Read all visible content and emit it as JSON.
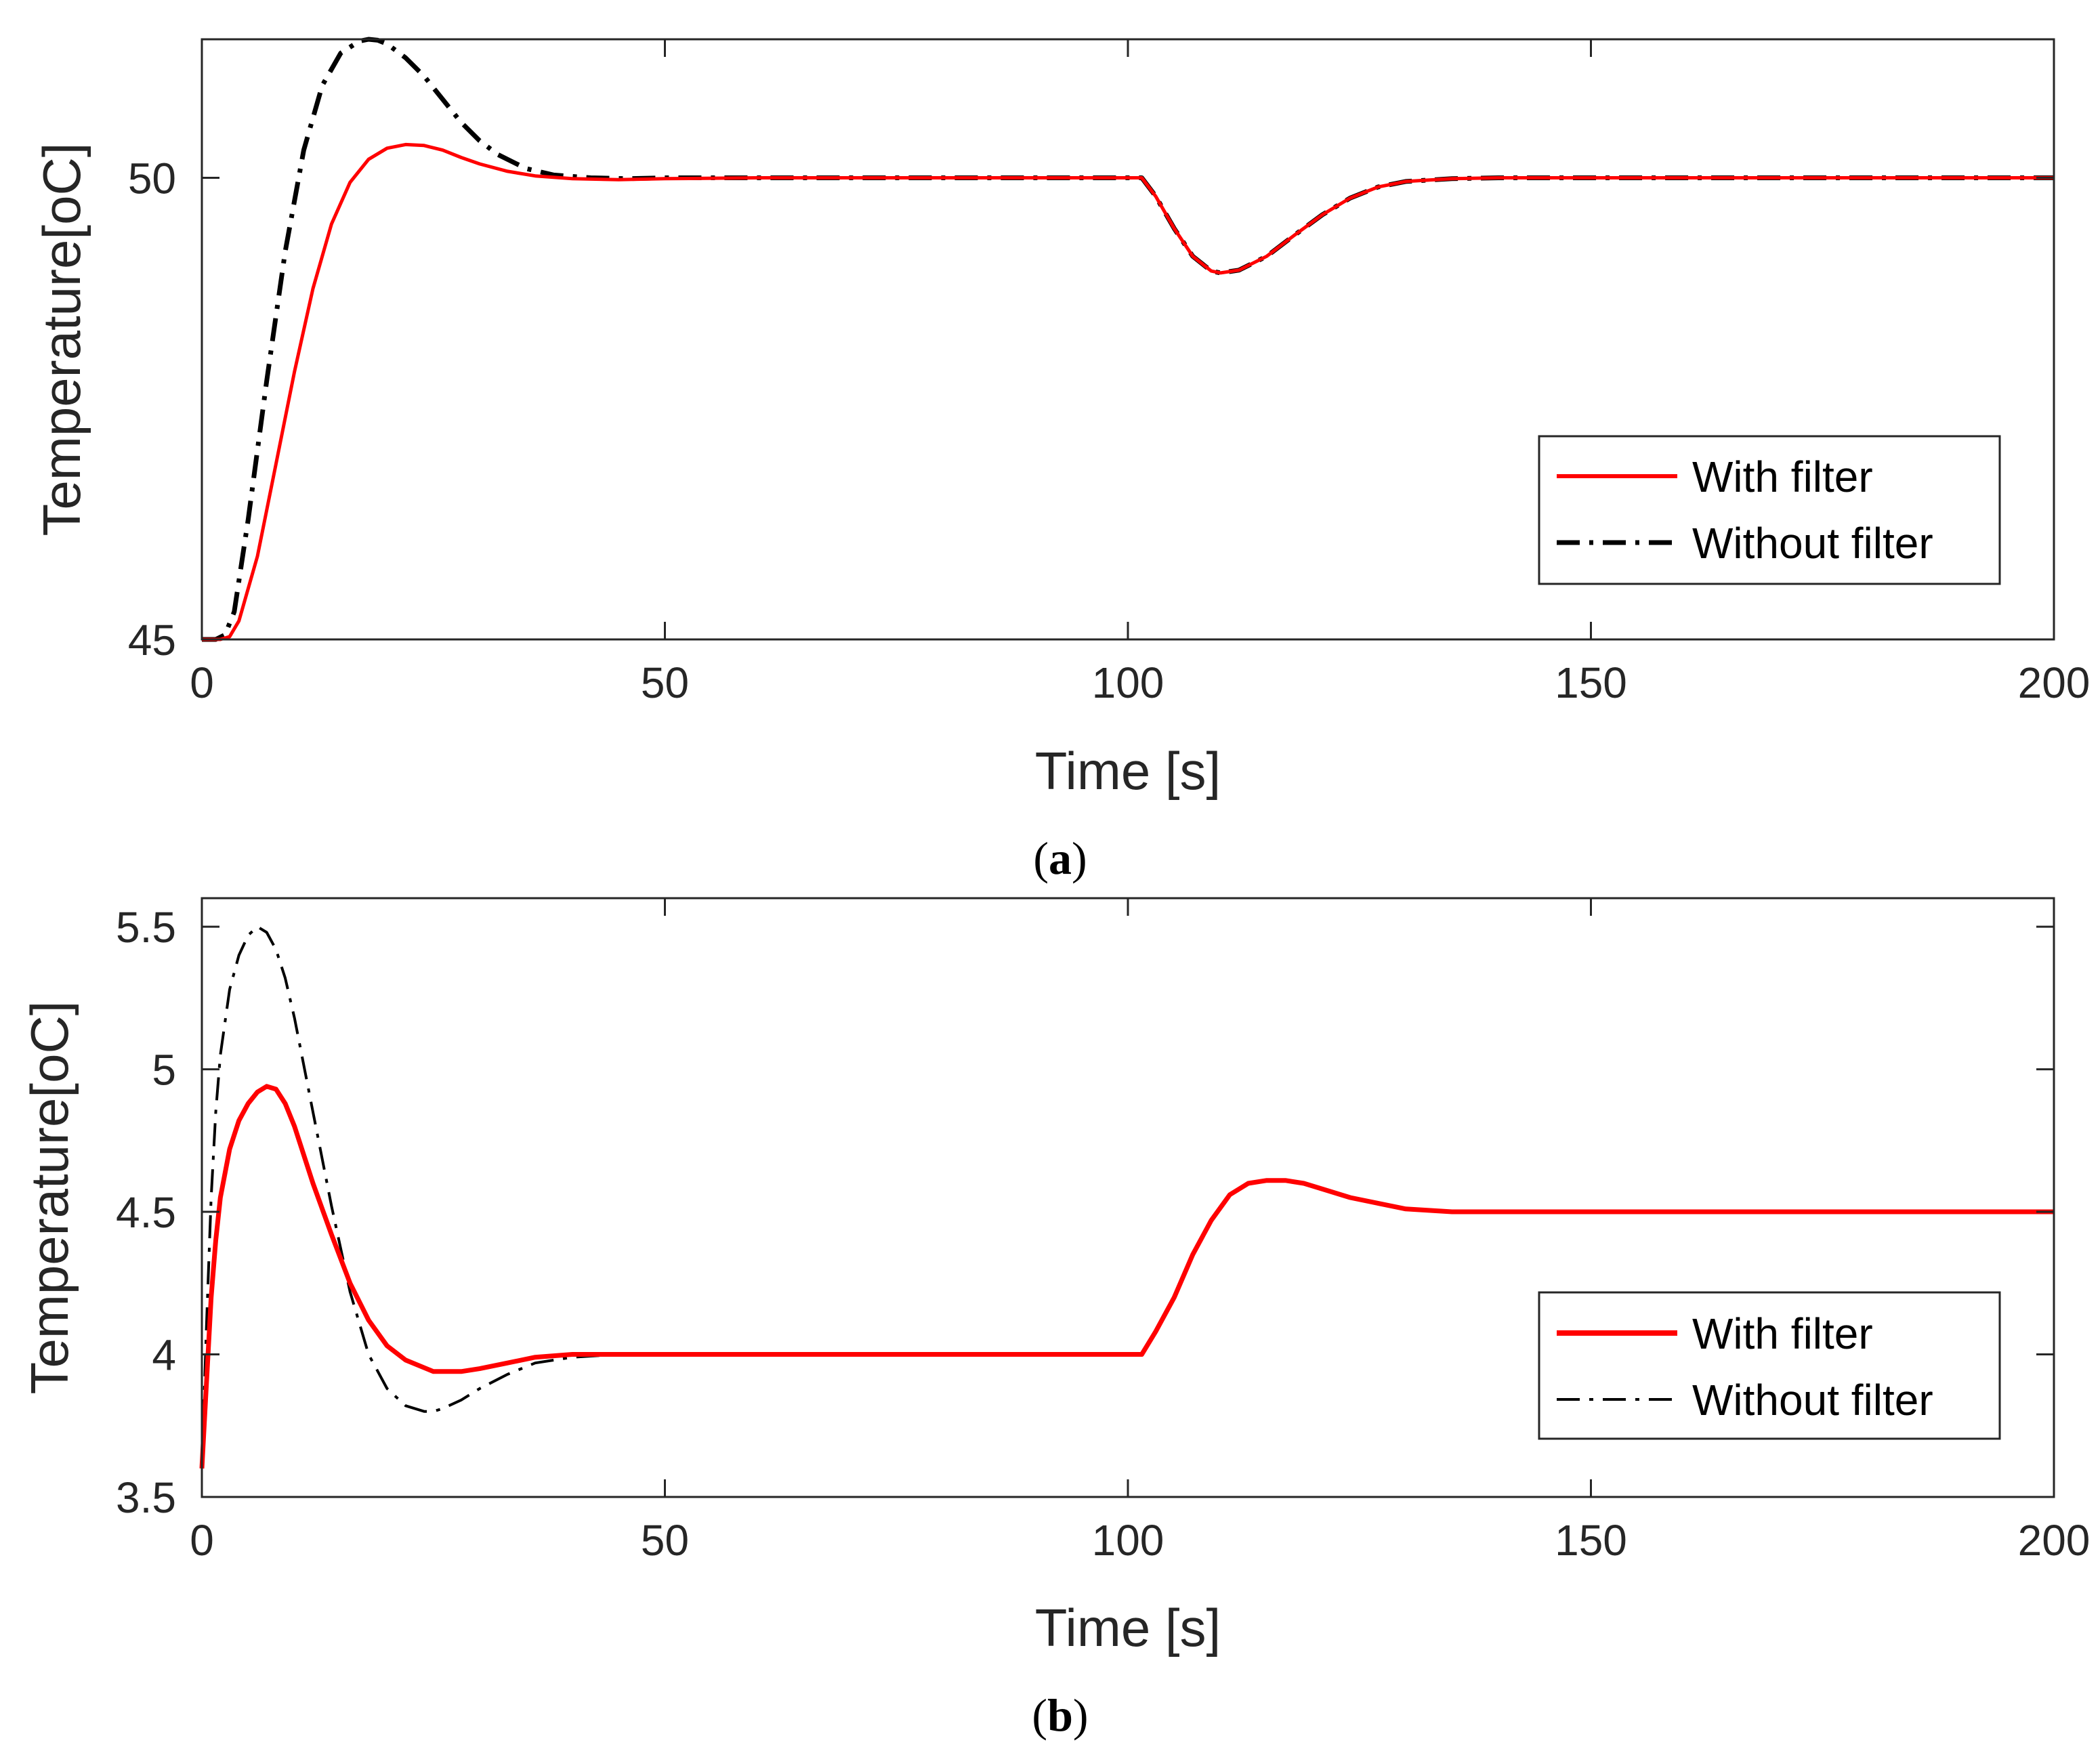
{
  "colors": {
    "with_filter": "#ff0000",
    "without_filter": "#000000",
    "axes": "#262626"
  },
  "chart_data": [
    {
      "type": "line",
      "caption_letter": "a",
      "xlabel": "Time [s]",
      "ylabel": "Temperature[oC]",
      "xlim": [
        0,
        200
      ],
      "ylim": [
        45,
        51.5
      ],
      "xticks": [
        "0",
        "50",
        "100",
        "150",
        "200"
      ],
      "yticks": [
        "45",
        "50"
      ],
      "grid": false,
      "legend_position": "lower-right",
      "series": [
        {
          "name": "With filter",
          "style": "solid",
          "x": [
            0,
            2,
            3,
            4,
            6,
            8,
            10,
            12,
            14,
            16,
            18,
            20,
            22,
            24,
            26,
            28,
            30,
            33,
            36,
            40,
            45,
            50,
            60,
            80,
            100,
            101.5,
            103,
            105,
            107,
            109,
            110,
            112,
            115,
            118,
            121,
            124,
            127,
            130,
            135,
            140,
            150,
            170,
            200
          ],
          "y": [
            45,
            45,
            45.03,
            45.2,
            45.9,
            46.9,
            47.9,
            48.8,
            49.5,
            49.95,
            50.2,
            50.32,
            50.36,
            50.35,
            50.3,
            50.22,
            50.15,
            50.07,
            50.02,
            49.99,
            49.98,
            49.99,
            50,
            50,
            50,
            50,
            49.8,
            49.45,
            49.15,
            48.99,
            48.97,
            49.0,
            49.15,
            49.38,
            49.6,
            49.78,
            49.9,
            49.96,
            49.99,
            50,
            50,
            50,
            50
          ]
        },
        {
          "name": "Without filter",
          "style": "dashdot",
          "x": [
            0,
            1.5,
            2.5,
            3.5,
            5,
            7,
            9,
            11,
            13,
            15,
            17,
            18,
            19,
            20,
            22,
            24,
            26,
            28,
            30,
            32,
            35,
            38,
            42,
            46,
            50,
            60,
            80,
            100,
            101.5,
            103,
            105,
            107,
            109,
            110,
            112,
            115,
            118,
            121,
            124,
            127,
            130,
            135,
            140,
            150,
            170,
            200
          ],
          "y": [
            45,
            45,
            45.05,
            45.3,
            46.3,
            47.8,
            49.2,
            50.3,
            51.0,
            51.35,
            51.48,
            51.5,
            51.49,
            51.45,
            51.3,
            51.1,
            50.85,
            50.6,
            50.4,
            50.25,
            50.1,
            50.03,
            50.0,
            49.99,
            50,
            50,
            50,
            50,
            50,
            49.8,
            49.45,
            49.15,
            48.99,
            48.97,
            49.0,
            49.15,
            49.38,
            49.6,
            49.78,
            49.9,
            49.96,
            49.99,
            50,
            50,
            50,
            50
          ]
        }
      ]
    },
    {
      "type": "line",
      "caption_letter": "b",
      "xlabel": "Time [s]",
      "ylabel": "Temperature[oC]",
      "xlim": [
        0,
        200
      ],
      "ylim": [
        3.5,
        5.6
      ],
      "xticks": [
        "0",
        "50",
        "100",
        "150",
        "200"
      ],
      "yticks": [
        "3.5",
        "4",
        "4.5",
        "5",
        "5.5"
      ],
      "grid": false,
      "legend_position": "lower-right",
      "series": [
        {
          "name": "With filter",
          "style": "solid",
          "x": [
            0,
            0.5,
            1,
            1.5,
            2,
            3,
            4,
            5,
            6,
            7,
            8,
            9,
            10,
            12,
            14,
            16,
            18,
            20,
            22,
            25,
            28,
            30,
            33,
            36,
            40,
            45,
            50,
            60,
            80,
            100,
            101.5,
            103,
            105,
            107,
            109,
            111,
            113,
            115,
            117,
            119,
            121,
            124,
            127,
            130,
            135,
            140,
            150,
            170,
            200
          ],
          "y": [
            3.6,
            3.9,
            4.2,
            4.4,
            4.55,
            4.72,
            4.82,
            4.88,
            4.92,
            4.94,
            4.93,
            4.88,
            4.8,
            4.6,
            4.42,
            4.25,
            4.12,
            4.03,
            3.98,
            3.94,
            3.94,
            3.95,
            3.97,
            3.99,
            4.0,
            4.0,
            4.0,
            4.0,
            4.0,
            4.0,
            4.0,
            4.08,
            4.2,
            4.35,
            4.47,
            4.56,
            4.6,
            4.61,
            4.61,
            4.6,
            4.58,
            4.55,
            4.53,
            4.51,
            4.5,
            4.5,
            4.5,
            4.5,
            4.5
          ]
        },
        {
          "name": "Without filter",
          "style": "dashdot",
          "x": [
            0,
            0.5,
            1,
            1.5,
            2,
            3,
            4,
            5,
            6,
            7,
            8,
            9,
            10,
            12,
            14,
            16,
            18,
            20,
            22,
            24,
            25,
            26,
            28,
            30,
            33,
            36,
            40,
            45,
            50,
            60,
            80,
            100,
            101.5,
            103,
            105,
            107,
            109,
            111,
            113,
            115,
            117,
            119,
            121,
            124,
            127,
            130,
            135,
            140,
            150,
            170,
            200
          ],
          "y": [
            3.6,
            4.1,
            4.55,
            4.85,
            5.05,
            5.28,
            5.4,
            5.47,
            5.5,
            5.48,
            5.42,
            5.32,
            5.18,
            4.85,
            4.52,
            4.22,
            4.0,
            3.88,
            3.82,
            3.8,
            3.8,
            3.81,
            3.84,
            3.88,
            3.93,
            3.97,
            3.99,
            4.0,
            4.0,
            4.0,
            4.0,
            4.0,
            4.0,
            4.08,
            4.2,
            4.35,
            4.47,
            4.56,
            4.6,
            4.61,
            4.61,
            4.6,
            4.58,
            4.55,
            4.53,
            4.51,
            4.5,
            4.5,
            4.5,
            4.5,
            4.5
          ]
        }
      ]
    }
  ]
}
